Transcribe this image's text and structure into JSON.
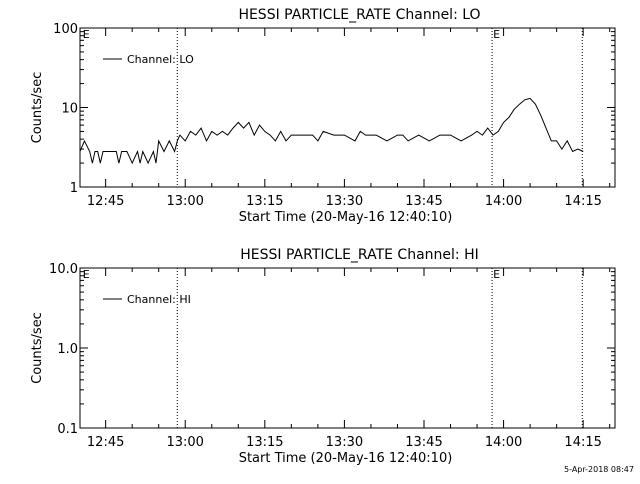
{
  "footer": {
    "timestamp": "5-Apr-2018 08:47"
  },
  "chart_data": [
    {
      "type": "line",
      "title": "HESSI PARTICLE_RATE Channel: LO",
      "xlabel": "Start Time (20-May-16 12:40:10)",
      "ylabel": "Counts/sec",
      "yscale": "log",
      "ylim": [
        1,
        100
      ],
      "xlim": [
        "12:40:10",
        "14:21:00"
      ],
      "xticks": [
        "12:45",
        "13:00",
        "13:15",
        "13:30",
        "13:45",
        "14:00",
        "14:15"
      ],
      "yticks": [
        "1",
        "10",
        "100"
      ],
      "legend": {
        "position": "top-left",
        "entries": [
          "Channel: LO"
        ]
      },
      "annotations": [
        {
          "text": "E",
          "x": "12:40:30"
        },
        {
          "text": "E",
          "x": "13:57:50"
        }
      ],
      "marker_times": [
        "12:58:30",
        "13:57:50",
        "14:14:50"
      ],
      "series": [
        {
          "name": "Channel: LO",
          "x": [
            "12:40:10",
            "12:41:00",
            "12:42:00",
            "12:42:30",
            "12:43:00",
            "12:43:30",
            "12:44:00",
            "12:44:30",
            "12:45:00",
            "12:46:00",
            "12:47:00",
            "12:47:30",
            "12:48:00",
            "12:48:30",
            "12:49:00",
            "12:50:00",
            "12:51:00",
            "12:51:30",
            "12:52:00",
            "12:53:00",
            "12:54:00",
            "12:54:30",
            "12:55:00",
            "12:56:00",
            "12:57:00",
            "12:58:00",
            "12:58:30",
            "12:59:00",
            "13:00:00",
            "13:01:00",
            "13:02:00",
            "13:03:00",
            "13:04:00",
            "13:05:00",
            "13:06:00",
            "13:07:00",
            "13:08:00",
            "13:09:00",
            "13:10:00",
            "13:11:00",
            "13:12:00",
            "13:13:00",
            "13:14:00",
            "13:15:00",
            "13:16:00",
            "13:17:00",
            "13:18:00",
            "13:19:00",
            "13:20:00",
            "13:22:00",
            "13:24:00",
            "13:25:00",
            "13:26:00",
            "13:28:00",
            "13:30:00",
            "13:32:00",
            "13:33:00",
            "13:34:00",
            "13:36:00",
            "13:38:00",
            "13:40:00",
            "13:41:00",
            "13:42:00",
            "13:44:00",
            "13:46:00",
            "13:48:00",
            "13:50:00",
            "13:52:00",
            "13:54:00",
            "13:55:00",
            "13:56:00",
            "13:57:00",
            "13:58:00",
            "13:59:00",
            "14:00:00",
            "14:01:00",
            "14:02:00",
            "14:03:00",
            "14:04:00",
            "14:05:00",
            "14:06:00",
            "14:07:00",
            "14:08:00",
            "14:09:00",
            "14:10:00",
            "14:11:00",
            "14:12:00",
            "14:13:00",
            "14:14:00",
            "14:15:00"
          ],
          "values": [
            2.8,
            3.8,
            2.8,
            2.0,
            2.8,
            2.8,
            2.0,
            2.8,
            2.8,
            2.8,
            2.8,
            2.0,
            2.8,
            2.8,
            2.8,
            2.0,
            2.8,
            2.0,
            2.8,
            2.0,
            2.8,
            2.0,
            3.8,
            2.8,
            3.8,
            2.8,
            3.8,
            4.5,
            3.8,
            5.0,
            4.5,
            5.5,
            3.8,
            5.0,
            4.5,
            5.0,
            4.5,
            5.5,
            6.5,
            5.5,
            6.5,
            4.5,
            6.0,
            5.0,
            4.5,
            3.8,
            5.0,
            3.8,
            4.5,
            4.5,
            4.5,
            3.8,
            5.0,
            4.5,
            4.5,
            3.8,
            5.0,
            4.5,
            4.5,
            3.8,
            4.5,
            4.5,
            3.8,
            4.5,
            3.8,
            4.5,
            4.5,
            3.8,
            4.5,
            5.0,
            4.5,
            5.5,
            4.5,
            5.0,
            6.5,
            7.5,
            9.5,
            11.0,
            12.5,
            13.0,
            11.0,
            8.0,
            5.5,
            3.8,
            3.8,
            3.0,
            3.8,
            2.8,
            3.0,
            2.8
          ]
        }
      ]
    },
    {
      "type": "line",
      "title": "HESSI PARTICLE_RATE Channel: HI",
      "xlabel": "Start Time (20-May-16 12:40:10)",
      "ylabel": "Counts/sec",
      "yscale": "log",
      "ylim": [
        0.1,
        10
      ],
      "xlim": [
        "12:40:10",
        "14:21:00"
      ],
      "xticks": [
        "12:45",
        "13:00",
        "13:15",
        "13:30",
        "13:45",
        "14:00",
        "14:15"
      ],
      "yticks": [
        "0.1",
        "1.0",
        "10.0"
      ],
      "legend": {
        "position": "top-left",
        "entries": [
          "Channel: HI"
        ]
      },
      "annotations": [
        {
          "text": "E",
          "x": "12:40:30"
        },
        {
          "text": "E",
          "x": "13:57:50"
        }
      ],
      "marker_times": [
        "12:58:30",
        "13:57:50",
        "14:14:50"
      ],
      "series": [
        {
          "name": "Channel: HI",
          "x": [],
          "values": []
        }
      ]
    }
  ]
}
